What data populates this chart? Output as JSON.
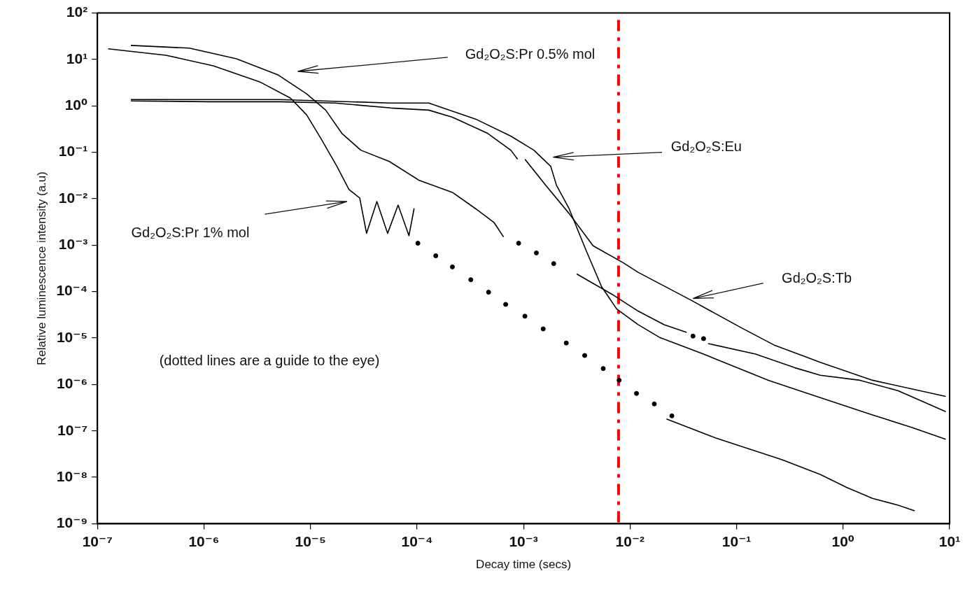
{
  "chart_data": {
    "type": "line",
    "xlabel": "Decay time (secs)",
    "ylabel": "Relative luminescence intensity (a.u)",
    "log": "xy",
    "grid": false,
    "legend": false,
    "marker": "none",
    "line_style": "solid",
    "xlim": [
      1e-07,
      10
    ],
    "ylim": [
      1e-09,
      100
    ],
    "xticks": [
      {
        "value": 1e-07,
        "label": "10⁻⁷"
      },
      {
        "value": 1e-06,
        "label": "10⁻⁶"
      },
      {
        "value": 1e-05,
        "label": "10⁻⁵"
      },
      {
        "value": 0.0001,
        "label": "10⁻⁴"
      },
      {
        "value": 0.001,
        "label": "10⁻³"
      },
      {
        "value": 0.01,
        "label": "10⁻²"
      },
      {
        "value": 0.1,
        "label": "10⁻¹"
      },
      {
        "value": 1,
        "label": "10⁰"
      },
      {
        "value": 10,
        "label": "10¹"
      }
    ],
    "yticks": [
      {
        "value": 1e-09,
        "label": "10⁻⁹"
      },
      {
        "value": 1e-08,
        "label": "10⁻⁸"
      },
      {
        "value": 1e-07,
        "label": "10⁻⁷"
      },
      {
        "value": 1e-06,
        "label": "10⁻⁶"
      },
      {
        "value": 1e-05,
        "label": "10⁻⁵"
      },
      {
        "value": 0.0001,
        "label": "10⁻⁴"
      },
      {
        "value": 0.001,
        "label": "10⁻³"
      },
      {
        "value": 0.01,
        "label": "10⁻²"
      },
      {
        "value": 0.1,
        "label": "10⁻¹"
      },
      {
        "value": 1,
        "label": "10⁰"
      },
      {
        "value": 10,
        "label": "10¹"
      },
      {
        "value": 100,
        "label": "10²"
      }
    ],
    "series": [
      {
        "color": "#000000",
        "x": [
          1.26e-07,
          4.4e-07,
          1.22e-06,
          3.33e-06,
          6.5e-06,
          9.2e-06,
          1.25e-05,
          1.77e-05,
          2.3e-05,
          2.9e-05,
          3.36e-05,
          4.2e-05,
          5.3e-05,
          6.65e-05,
          8.4e-05,
          9.4e-05
        ],
        "values": [
          16.9,
          12.3,
          7.3,
          3.3,
          1.47,
          0.64,
          0.2,
          0.05,
          0.0157,
          0.0104,
          0.0018,
          0.0087,
          0.0018,
          0.0073,
          0.0016,
          0.0062
        ]
      },
      {
        "type": "scatter",
        "marker": "circle",
        "color": "#000000",
        "x": [
          0.000102,
          0.00015,
          0.000215,
          0.00032,
          0.00047,
          0.00068,
          0.00103,
          0.00153,
          0.00252,
          0.00375,
          0.0056,
          0.0079,
          0.0115,
          0.0169,
          0.0247
        ],
        "values": [
          0.0011,
          0.00059,
          0.00034,
          0.00018,
          9.7e-05,
          5.3e-05,
          2.95e-05,
          1.57e-05,
          7.8e-06,
          4.2e-06,
          2.2e-06,
          1.23e-06,
          6.4e-07,
          3.8e-07,
          2.1e-07
        ]
      },
      {
        "color": "#000000",
        "x": [
          0.022,
          0.064,
          0.265,
          0.61,
          1.07,
          1.89,
          3.3,
          4.7
        ],
        "values": [
          1.8e-07,
          7e-08,
          2.4e-08,
          1.15e-08,
          6.1e-09,
          3.5e-09,
          2.5e-09,
          1.9e-09
        ]
      },
      {
        "color": "#000000",
        "x": [
          2.06e-07,
          7.3e-07,
          2.02e-06,
          5e-06,
          9.2e-06,
          1.39e-05,
          1.97e-05,
          2.97e-05,
          5.5e-05,
          0.000105,
          0.000215,
          0.000355,
          0.00053,
          0.00065
        ],
        "values": [
          20.1,
          17.5,
          10.3,
          4.6,
          1.81,
          0.81,
          0.256,
          0.111,
          0.0635,
          0.0248,
          0.0137,
          0.0061,
          0.00305,
          0.0015
        ]
      },
      {
        "type": "scatter",
        "marker": "circle",
        "color": "#000000",
        "x": [
          0.0009,
          0.00132,
          0.00192,
          0.039,
          0.049
        ],
        "values": [
          0.0011,
          0.00068,
          0.0004,
          1.1e-05,
          9.7e-06
        ]
      },
      {
        "color": "#000000",
        "x": [
          0.00316,
          0.0068,
          0.0119,
          0.0209,
          0.034
        ],
        "values": [
          0.00024,
          8.7e-05,
          3.8e-05,
          1.94e-05,
          1.32e-05
        ]
      },
      {
        "color": "#000000",
        "x": [
          0.054,
          0.151,
          0.35,
          0.61,
          1.44,
          3.3,
          9.2
        ],
        "values": [
          7.6e-06,
          4.5e-06,
          2.3e-06,
          1.58e-06,
          1.23e-06,
          7.3e-07,
          2.6e-07
        ]
      },
      {
        "color": "#000000",
        "x": [
          2.06e-07,
          1.1e-06,
          5e-06,
          1.7e-05,
          5.7e-05,
          0.000129,
          0.000215,
          0.00046,
          0.00076,
          0.00088
        ],
        "values": [
          1.28,
          1.23,
          1.23,
          1.15,
          0.9,
          0.81,
          0.57,
          0.256,
          0.111,
          0.071
        ]
      },
      {
        "color": "#000000",
        "x": [
          0.00103,
          0.00162,
          0.00268,
          0.0045,
          0.0086,
          0.0119,
          0.037,
          0.113,
          0.224,
          0.61,
          1.89,
          9.2
        ],
        "values": [
          0.071,
          0.0194,
          0.0048,
          0.00097,
          0.00042,
          0.00026,
          6.6e-05,
          1.62e-05,
          7.1e-06,
          3e-06,
          1.23e-06,
          5.5e-07
        ]
      },
      {
        "color": "#000000",
        "x": [
          2.06e-07,
          5e-06,
          5.7e-05,
          0.000129,
          0.000355,
          0.00076,
          0.00125,
          0.0018,
          0.00204,
          0.00268,
          0.00386,
          0.0054,
          0.0075,
          0.0119,
          0.0188,
          0.049,
          0.199,
          0.465,
          1.89,
          4.4,
          9.2
        ],
        "values": [
          1.37,
          1.37,
          1.15,
          1.15,
          0.52,
          0.223,
          0.111,
          0.05,
          0.0194,
          0.0061,
          0.00078,
          0.000128,
          4.2e-05,
          1.94e-05,
          1.04e-05,
          4.5e-06,
          1.23e-06,
          6.4e-07,
          2.2e-07,
          1.19e-07,
          6.6e-08
        ]
      }
    ],
    "ref_lines": [
      {
        "axis": "x",
        "value": 0.0078,
        "color": "#ff0000",
        "line_style": "dashdot"
      }
    ],
    "annotations": [
      "Gd₂O₂S:Pr 0.5% mol",
      "Gd₂O₂S:Eu",
      "Gd₂O₂S:Pr 1% mol",
      "Gd₂O₂S:Tb",
      "(dotted lines are a guide to the eye)"
    ]
  }
}
